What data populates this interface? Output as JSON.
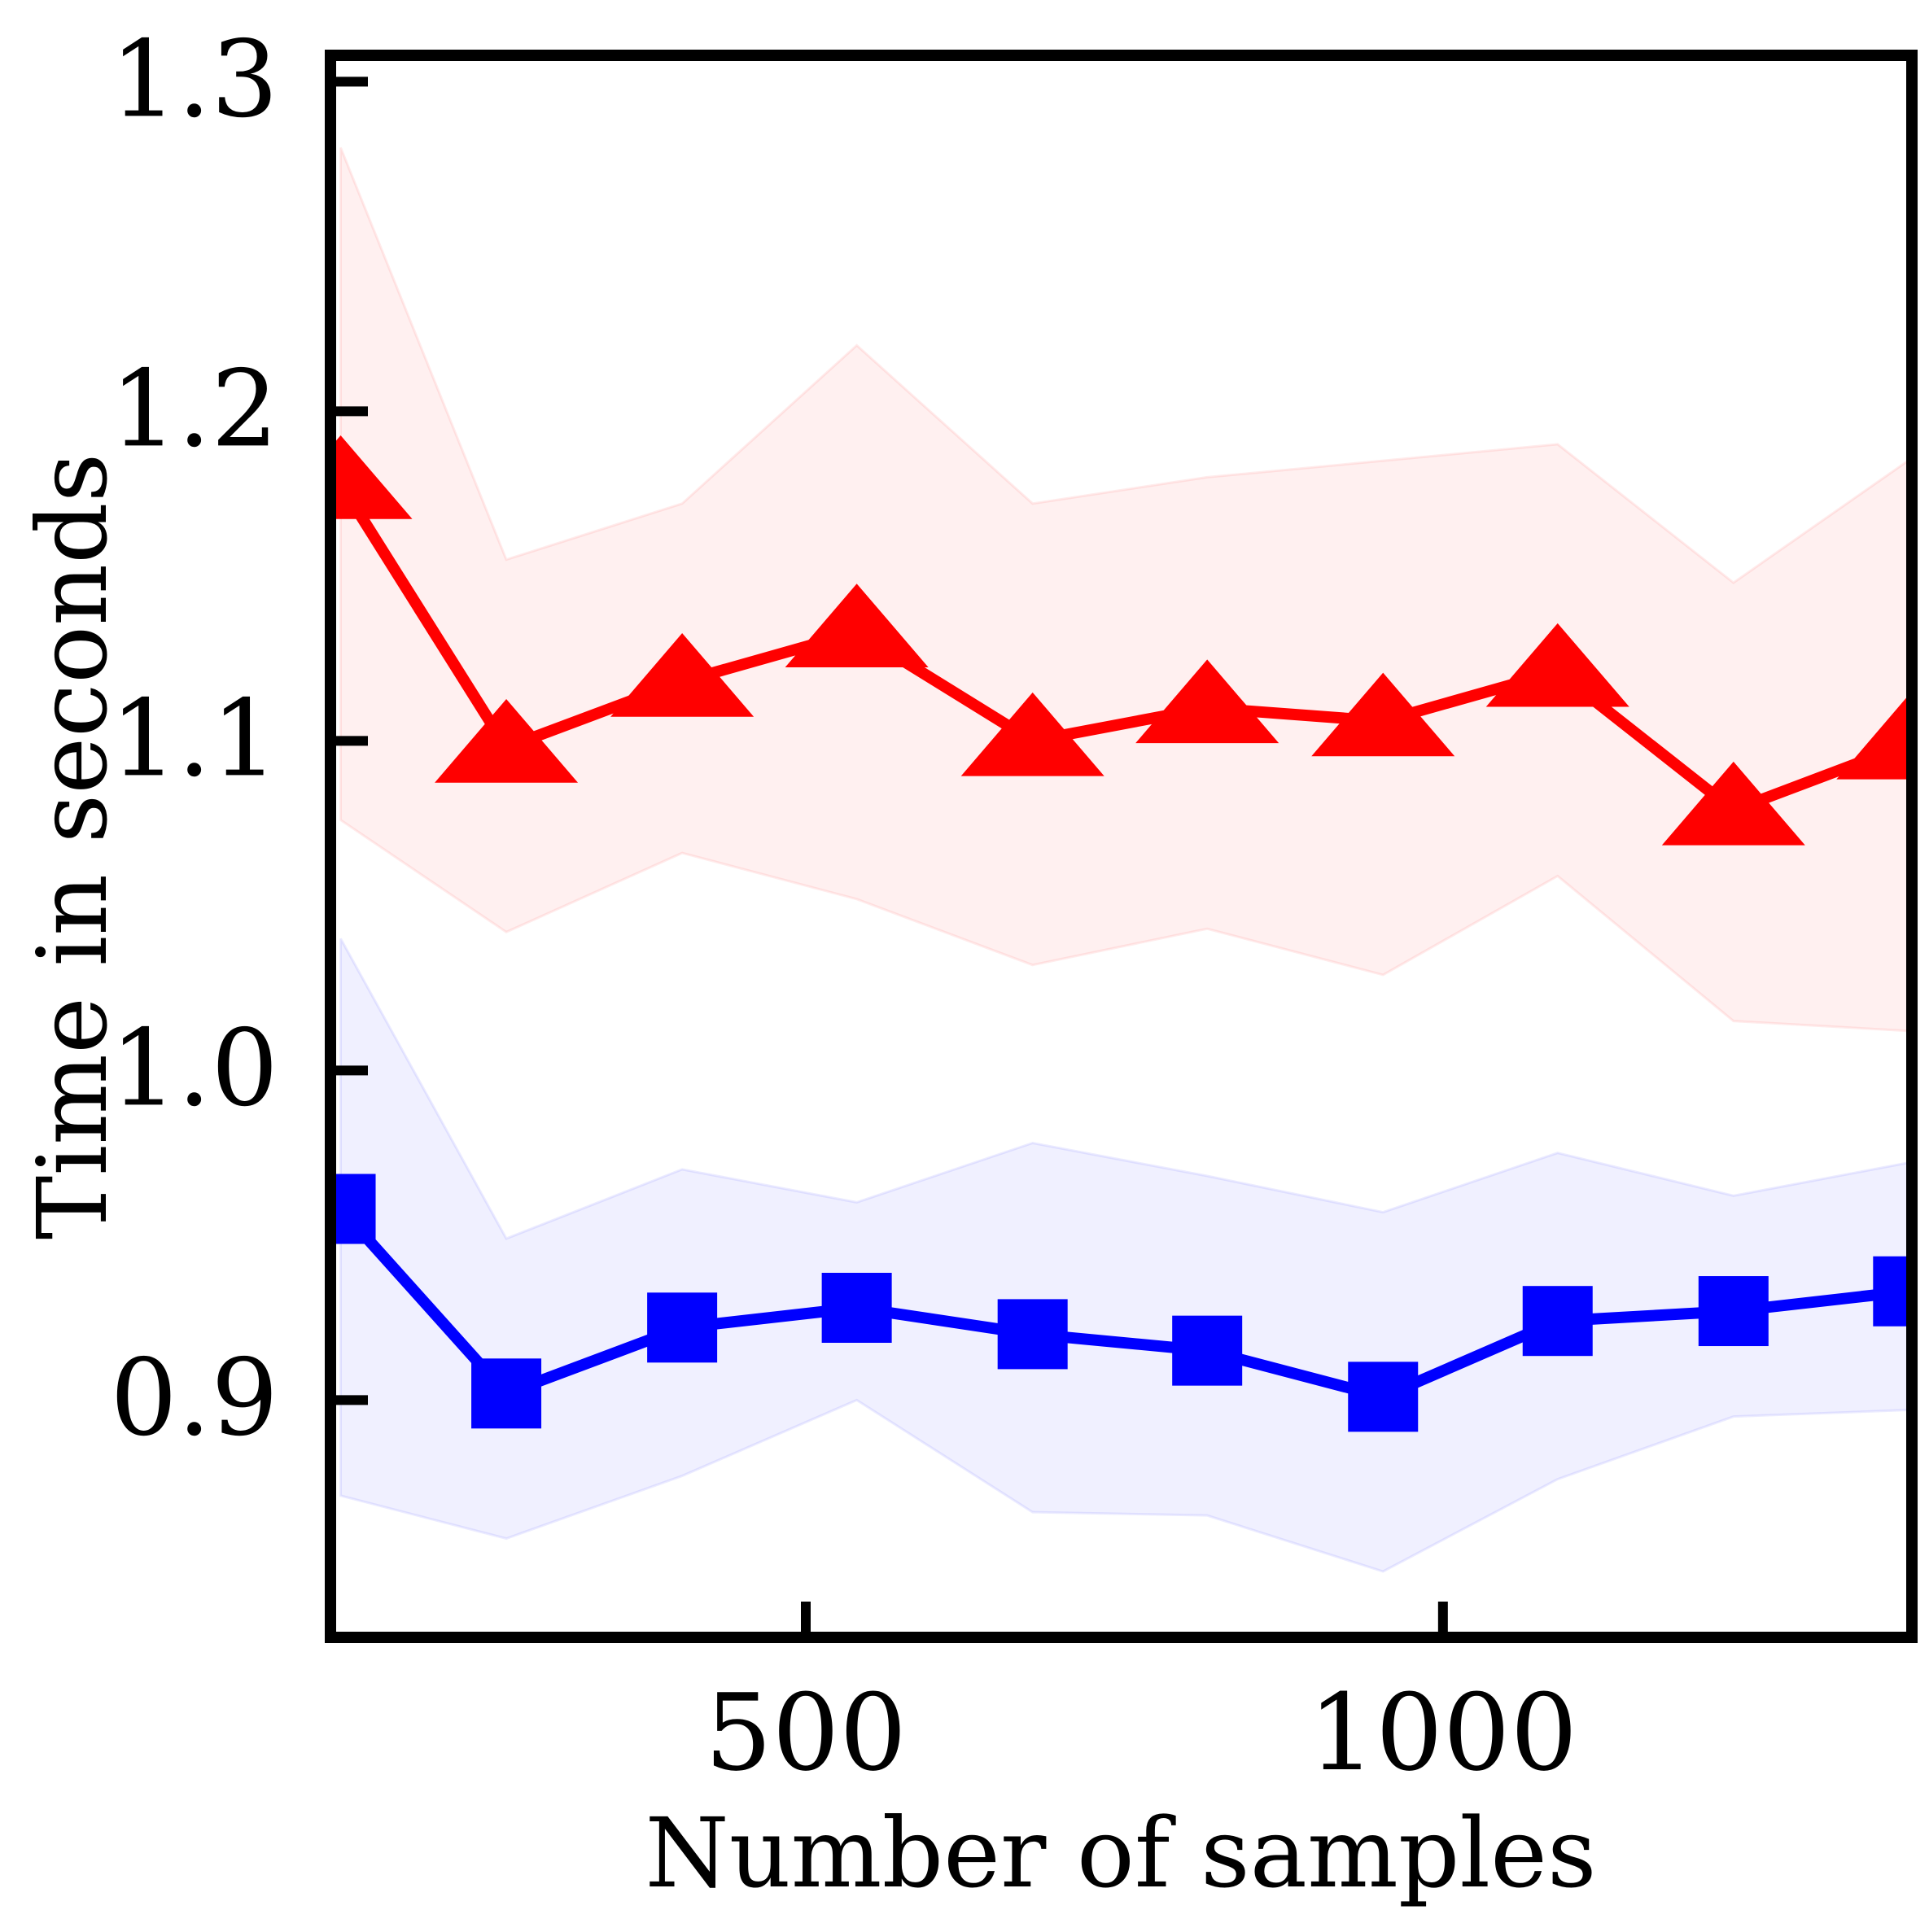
{
  "chart_data": {
    "type": "line",
    "xlabel": "Number of samples",
    "ylabel": "Time in seconds",
    "xlim": [
      127,
      1368
    ],
    "ylim": [
      0.828,
      1.308
    ],
    "x_ticks": [
      500,
      1000
    ],
    "x_tick_labels": [
      "500",
      "1000"
    ],
    "y_ticks": [
      0.9,
      1.0,
      1.1,
      1.2,
      1.3
    ],
    "y_tick_labels": [
      "0.9",
      "1.0",
      "1.1",
      "1.2",
      "1.3"
    ],
    "grid": false,
    "legend": null,
    "x": [
      135,
      265,
      403,
      540,
      678,
      815,
      953,
      1090,
      1228,
      1365
    ],
    "series": [
      {
        "color": "#ff0000",
        "marker": "triangle",
        "values": [
          1.178,
          1.098,
          1.118,
          1.133,
          1.1,
          1.11,
          1.106,
          1.121,
          1.079,
          1.099
        ],
        "band_upper": [
          1.28,
          1.155,
          1.172,
          1.22,
          1.172,
          1.18,
          1.185,
          1.19,
          1.148,
          1.185
        ],
        "band_lower": [
          1.076,
          1.042,
          1.066,
          1.052,
          1.032,
          1.043,
          1.029,
          1.059,
          1.015,
          1.012
        ]
      },
      {
        "color": "#0000ff",
        "marker": "square",
        "values": [
          0.958,
          0.902,
          0.922,
          0.928,
          0.92,
          0.915,
          0.901,
          0.924,
          0.927,
          0.933
        ],
        "band_upper": [
          1.04,
          0.949,
          0.97,
          0.96,
          0.978,
          0.968,
          0.957,
          0.975,
          0.962,
          0.972
        ],
        "band_lower": [
          0.871,
          0.858,
          0.877,
          0.9,
          0.866,
          0.865,
          0.848,
          0.876,
          0.895,
          0.897
        ]
      }
    ]
  }
}
